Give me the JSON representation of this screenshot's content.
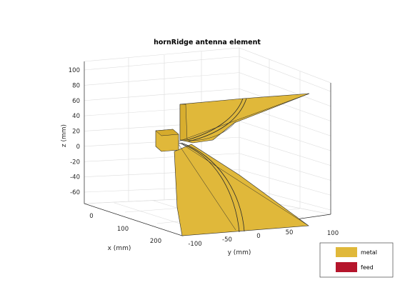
{
  "chart_data": {
    "type": "3d-surface",
    "title": "hornRidge antenna element",
    "xlabel": "x (mm)",
    "ylabel": "y (mm)",
    "zlabel": "z (mm)",
    "x_ticks": [
      0,
      100,
      200
    ],
    "y_ticks": [
      -100,
      -50,
      0,
      50,
      100
    ],
    "z_ticks": [
      100,
      80,
      60,
      40,
      20,
      0,
      -20,
      -40,
      -60
    ],
    "grid": true,
    "legend_position": "bottom-right",
    "legend": [
      {
        "label": "metal",
        "color": "#e0b83a"
      },
      {
        "label": "feed",
        "color": "#b5152b"
      }
    ]
  }
}
